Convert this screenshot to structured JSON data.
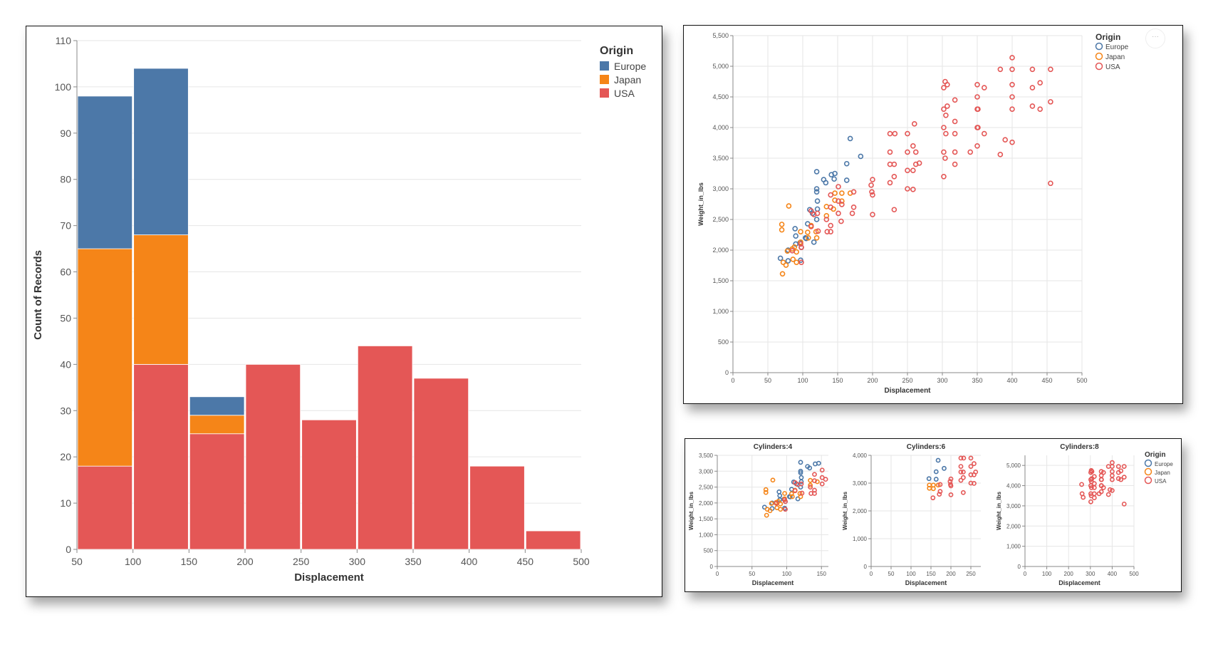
{
  "colors": {
    "Europe": "#4c78a8",
    "Japan": "#f58518",
    "USA": "#e45756",
    "grid": "#e6e6e6",
    "axis": "#888888"
  },
  "more_button": "···",
  "chart_data": [
    {
      "type": "bar",
      "stacked": true,
      "title": "",
      "xlabel": "Displacement",
      "ylabel": "Count of Records",
      "xlim": [
        50,
        500
      ],
      "ylim": [
        0,
        110
      ],
      "xticks": [
        50,
        100,
        150,
        200,
        250,
        300,
        350,
        400,
        450,
        500
      ],
      "yticks": [
        0,
        10,
        20,
        30,
        40,
        50,
        60,
        70,
        80,
        90,
        100,
        110
      ],
      "grid": true,
      "legend": {
        "title": "Origin",
        "placement": "top-right",
        "entries": [
          "Europe",
          "Japan",
          "USA"
        ]
      },
      "bins": [
        [
          50,
          100
        ],
        [
          100,
          150
        ],
        [
          150,
          200
        ],
        [
          200,
          250
        ],
        [
          250,
          300
        ],
        [
          300,
          350
        ],
        [
          350,
          400
        ],
        [
          400,
          450
        ],
        [
          450,
          500
        ]
      ],
      "series": [
        {
          "name": "USA",
          "values": [
            18,
            40,
            25,
            40,
            28,
            44,
            37,
            18,
            4
          ]
        },
        {
          "name": "Japan",
          "values": [
            47,
            28,
            4,
            0,
            0,
            0,
            0,
            0,
            0
          ]
        },
        {
          "name": "Europe",
          "values": [
            33,
            36,
            4,
            0,
            0,
            0,
            0,
            0,
            0
          ]
        }
      ]
    },
    {
      "type": "scatter",
      "xlabel": "Displacement",
      "ylabel": "Weight_in_lbs",
      "xlim": [
        0,
        500
      ],
      "ylim": [
        0,
        5500
      ],
      "xticks": [
        "0",
        "50",
        "100",
        "150",
        "200",
        "250",
        "300",
        "350",
        "400",
        "450",
        "500"
      ],
      "yticks": [
        "0",
        "500",
        "1,000",
        "1,500",
        "2,000",
        "2,500",
        "3,000",
        "3,500",
        "4,000",
        "4,500",
        "5,000",
        "5,500"
      ],
      "grid": true,
      "legend": {
        "title": "Origin",
        "placement": "top-right",
        "entries": [
          "Europe",
          "Japan",
          "USA"
        ]
      }
    },
    {
      "type": "scatter",
      "facet_field": "Cylinders",
      "facets": [
        {
          "title": "Cylinders:4",
          "cylinders": 4,
          "xlim": [
            0,
            160
          ],
          "ylim": [
            0,
            3500
          ],
          "xticks": [
            "0",
            "50",
            "100",
            "150"
          ],
          "yticks": [
            "0",
            "500",
            "1,000",
            "1,500",
            "2,000",
            "2,500",
            "3,000",
            "3,500"
          ]
        },
        {
          "title": "Cylinders:6",
          "cylinders": 6,
          "xlim": [
            0,
            275
          ],
          "ylim": [
            0,
            4000
          ],
          "xticks": [
            "0",
            "50",
            "100",
            "150",
            "200",
            "250"
          ],
          "yticks": [
            "0",
            "1,000",
            "2,000",
            "3,000",
            "4,000"
          ]
        },
        {
          "title": "Cylinders:8",
          "cylinders": 8,
          "xlim": [
            0,
            500
          ],
          "ylim": [
            0,
            5500
          ],
          "xticks": [
            "0",
            "100",
            "200",
            "300",
            "400",
            "500"
          ],
          "yticks": [
            "0",
            "1,000",
            "2,000",
            "3,000",
            "4,000",
            "5,000"
          ]
        }
      ],
      "xlabel": "Displacement",
      "ylabel": "Weight_in_lbs",
      "legend": {
        "title": "Origin",
        "placement": "right",
        "entries": [
          "Europe",
          "Japan",
          "USA"
        ]
      }
    }
  ],
  "points_fields": [
    "Displacement",
    "Weight_in_lbs",
    "Origin",
    "Cylinders"
  ],
  "points": [
    [
      68,
      1867,
      "Europe",
      4
    ],
    [
      79,
      2000,
      "Europe",
      4
    ],
    [
      90,
      2100,
      "Europe",
      4
    ],
    [
      97,
      1835,
      "Europe",
      4
    ],
    [
      90,
      2230,
      "Europe",
      4
    ],
    [
      98,
      2045,
      "Europe",
      4
    ],
    [
      105,
      2190,
      "Europe",
      4
    ],
    [
      107,
      2430,
      "Europe",
      4
    ],
    [
      114,
      2600,
      "Europe",
      4
    ],
    [
      116,
      2130,
      "Europe",
      4
    ],
    [
      120,
      2950,
      "Europe",
      4
    ],
    [
      120,
      3000,
      "Europe",
      4
    ],
    [
      121,
      2800,
      "Europe",
      4
    ],
    [
      121,
      2670,
      "Europe",
      4
    ],
    [
      120,
      2500,
      "Europe",
      4
    ],
    [
      130,
      3150,
      "Europe",
      4
    ],
    [
      133,
      3100,
      "Europe",
      4
    ],
    [
      141,
      3230,
      "Europe",
      4
    ],
    [
      146,
      3250,
      "Europe",
      4
    ],
    [
      110,
      2660,
      "Europe",
      4
    ],
    [
      104,
      2200,
      "Europe",
      4
    ],
    [
      89,
      2350,
      "Europe",
      4
    ],
    [
      79,
      1825,
      "Europe",
      4
    ],
    [
      96,
      2120,
      "Europe",
      4
    ],
    [
      120,
      3280,
      "Europe",
      4
    ],
    [
      145,
      3160,
      "Europe",
      6
    ],
    [
      163,
      3410,
      "Europe",
      6
    ],
    [
      168,
      3820,
      "Europe",
      6
    ],
    [
      183,
      3530,
      "Europe",
      6
    ],
    [
      163,
      3140,
      "Europe",
      6
    ],
    [
      71,
      1613,
      "Japan",
      4
    ],
    [
      72,
      1800,
      "Japan",
      4
    ],
    [
      76,
      1755,
      "Japan",
      4
    ],
    [
      78,
      1985,
      "Japan",
      4
    ],
    [
      85,
      2020,
      "Japan",
      4
    ],
    [
      86,
      1850,
      "Japan",
      4
    ],
    [
      91,
      1970,
      "Japan",
      4
    ],
    [
      97,
      2130,
      "Japan",
      4
    ],
    [
      97,
      2300,
      "Japan",
      4
    ],
    [
      107,
      2290,
      "Japan",
      4
    ],
    [
      108,
      2200,
      "Japan",
      4
    ],
    [
      112,
      2400,
      "Japan",
      4
    ],
    [
      119,
      2300,
      "Japan",
      4
    ],
    [
      120,
      2200,
      "Japan",
      4
    ],
    [
      134,
      2560,
      "Japan",
      4
    ],
    [
      134,
      2710,
      "Japan",
      4
    ],
    [
      144,
      2670,
      "Japan",
      4
    ],
    [
      70,
      2420,
      "Japan",
      4
    ],
    [
      70,
      2330,
      "Japan",
      4
    ],
    [
      80,
      2720,
      "Japan",
      4
    ],
    [
      91,
      1800,
      "Japan",
      4
    ],
    [
      88,
      2050,
      "Japan",
      4
    ],
    [
      146,
      2930,
      "Japan",
      6
    ],
    [
      156,
      2800,
      "Japan",
      6
    ],
    [
      168,
      2930,
      "Japan",
      6
    ],
    [
      146,
      2815,
      "Japan",
      6
    ],
    [
      156,
      2930,
      "Japan",
      6
    ],
    [
      85,
      1990,
      "USA",
      4
    ],
    [
      98,
      1800,
      "USA",
      4
    ],
    [
      98,
      2045,
      "USA",
      4
    ],
    [
      97,
      2100,
      "USA",
      4
    ],
    [
      112,
      2385,
      "USA",
      4
    ],
    [
      116,
      2580,
      "USA",
      4
    ],
    [
      121,
      2600,
      "USA",
      4
    ],
    [
      122,
      2310,
      "USA",
      4
    ],
    [
      135,
      2300,
      "USA",
      4
    ],
    [
      140,
      2400,
      "USA",
      4
    ],
    [
      140,
      2700,
      "USA",
      4
    ],
    [
      140,
      2900,
      "USA",
      4
    ],
    [
      151,
      2600,
      "USA",
      4
    ],
    [
      151,
      3035,
      "USA",
      4
    ],
    [
      151,
      2800,
      "USA",
      4
    ],
    [
      156,
      2745,
      "USA",
      4
    ],
    [
      134,
      2500,
      "USA",
      4
    ],
    [
      112,
      2640,
      "USA",
      4
    ],
    [
      140,
      2300,
      "USA",
      4
    ],
    [
      155,
      2470,
      "USA",
      6
    ],
    [
      171,
      2600,
      "USA",
      6
    ],
    [
      173,
      2700,
      "USA",
      6
    ],
    [
      173,
      2950,
      "USA",
      6
    ],
    [
      200,
      2580,
      "USA",
      6
    ],
    [
      200,
      2900,
      "USA",
      6
    ],
    [
      200,
      3150,
      "USA",
      6
    ],
    [
      225,
      3100,
      "USA",
      6
    ],
    [
      225,
      3400,
      "USA",
      6
    ],
    [
      225,
      3600,
      "USA",
      6
    ],
    [
      225,
      3900,
      "USA",
      6
    ],
    [
      231,
      2660,
      "USA",
      6
    ],
    [
      231,
      3200,
      "USA",
      6
    ],
    [
      231,
      3400,
      "USA",
      6
    ],
    [
      232,
      3900,
      "USA",
      6
    ],
    [
      250,
      3000,
      "USA",
      6
    ],
    [
      250,
      3300,
      "USA",
      6
    ],
    [
      250,
      3600,
      "USA",
      6
    ],
    [
      250,
      3900,
      "USA",
      6
    ],
    [
      258,
      2990,
      "USA",
      6
    ],
    [
      258,
      3300,
      "USA",
      6
    ],
    [
      258,
      3700,
      "USA",
      6
    ],
    [
      262,
      3400,
      "USA",
      6
    ],
    [
      199,
      2950,
      "USA",
      6
    ],
    [
      198,
      3060,
      "USA",
      6
    ],
    [
      260,
      4060,
      "USA",
      8
    ],
    [
      262,
      3600,
      "USA",
      8
    ],
    [
      267,
      3420,
      "USA",
      8
    ],
    [
      302,
      3200,
      "USA",
      8
    ],
    [
      302,
      3600,
      "USA",
      8
    ],
    [
      302,
      4000,
      "USA",
      8
    ],
    [
      302,
      4300,
      "USA",
      8
    ],
    [
      304,
      3500,
      "USA",
      8
    ],
    [
      305,
      3900,
      "USA",
      8
    ],
    [
      305,
      4200,
      "USA",
      8
    ],
    [
      307,
      4350,
      "USA",
      8
    ],
    [
      318,
      3400,
      "USA",
      8
    ],
    [
      318,
      3900,
      "USA",
      8
    ],
    [
      318,
      4100,
      "USA",
      8
    ],
    [
      318,
      4450,
      "USA",
      8
    ],
    [
      318,
      3600,
      "USA",
      8
    ],
    [
      340,
      3600,
      "USA",
      8
    ],
    [
      350,
      3700,
      "USA",
      8
    ],
    [
      350,
      4000,
      "USA",
      8
    ],
    [
      350,
      4300,
      "USA",
      8
    ],
    [
      350,
      4500,
      "USA",
      8
    ],
    [
      350,
      4700,
      "USA",
      8
    ],
    [
      351,
      4000,
      "USA",
      8
    ],
    [
      351,
      4300,
      "USA",
      8
    ],
    [
      360,
      3900,
      "USA",
      8
    ],
    [
      360,
      4650,
      "USA",
      8
    ],
    [
      383,
      3560,
      "USA",
      8
    ],
    [
      383,
      4950,
      "USA",
      8
    ],
    [
      390,
      3800,
      "USA",
      8
    ],
    [
      400,
      3760,
      "USA",
      8
    ],
    [
      400,
      4300,
      "USA",
      8
    ],
    [
      400,
      4500,
      "USA",
      8
    ],
    [
      400,
      4700,
      "USA",
      8
    ],
    [
      400,
      4950,
      "USA",
      8
    ],
    [
      400,
      5140,
      "USA",
      8
    ],
    [
      429,
      4950,
      "USA",
      8
    ],
    [
      429,
      4350,
      "USA",
      8
    ],
    [
      429,
      4650,
      "USA",
      8
    ],
    [
      440,
      4300,
      "USA",
      8
    ],
    [
      440,
      4730,
      "USA",
      8
    ],
    [
      455,
      4950,
      "USA",
      8
    ],
    [
      455,
      4420,
      "USA",
      8
    ],
    [
      455,
      3090,
      "USA",
      8
    ],
    [
      307,
      4700,
      "USA",
      8
    ],
    [
      304,
      4750,
      "USA",
      8
    ],
    [
      302,
      4650,
      "USA",
      8
    ]
  ]
}
